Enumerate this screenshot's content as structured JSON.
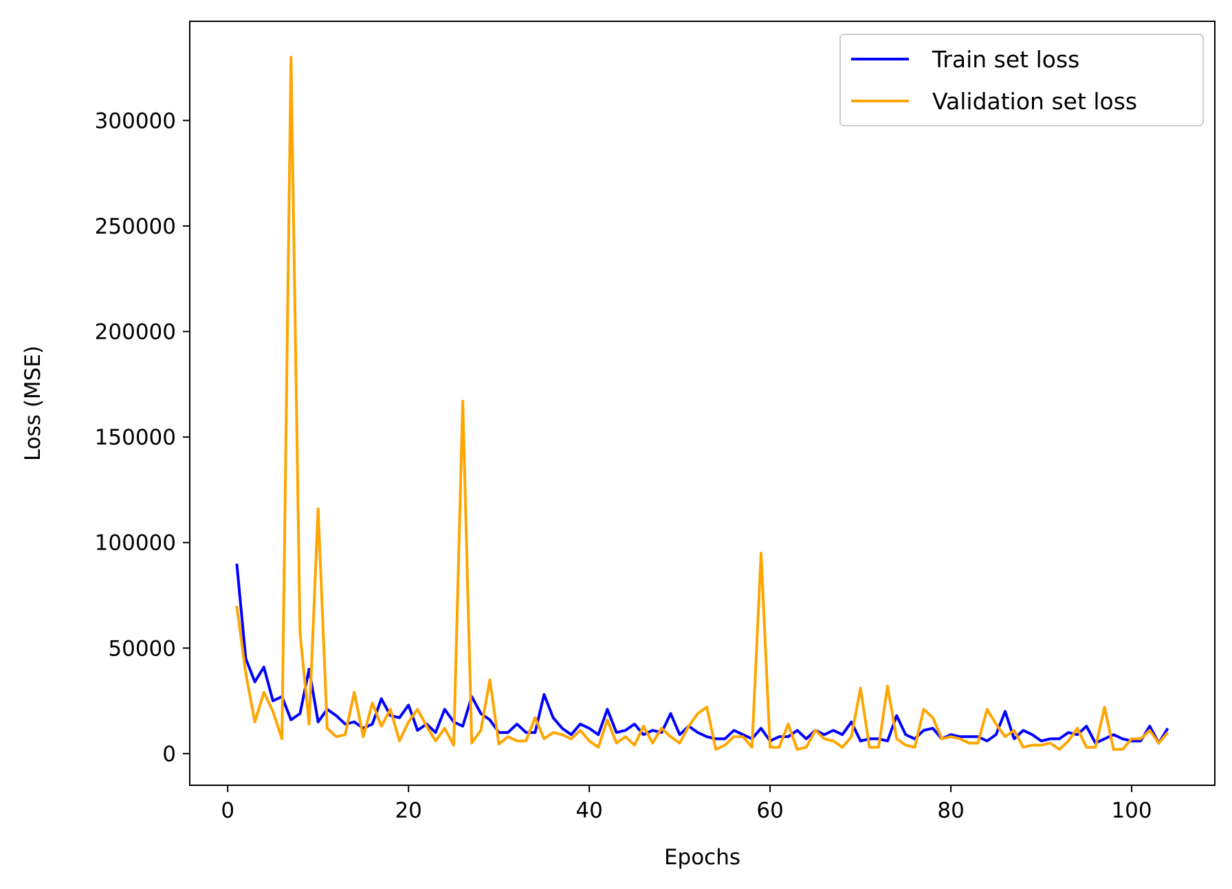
{
  "chart_data": {
    "type": "line",
    "title": "",
    "xlabel": "Epochs",
    "ylabel": "Loss (MSE)",
    "xlim": [
      -4.2,
      109.2
    ],
    "ylim": [
      -15000,
      347000
    ],
    "xticks": [
      0,
      20,
      40,
      60,
      80,
      100
    ],
    "yticks": [
      0,
      50000,
      100000,
      150000,
      200000,
      250000,
      300000
    ],
    "xtick_labels": [
      "0",
      "20",
      "40",
      "60",
      "80",
      "100"
    ],
    "ytick_labels": [
      "0",
      "50000",
      "100000",
      "150000",
      "200000",
      "250000",
      "300000"
    ],
    "grid": false,
    "legend_position": "upper right",
    "x": [
      1,
      2,
      3,
      4,
      5,
      6,
      7,
      8,
      9,
      10,
      11,
      12,
      13,
      14,
      15,
      16,
      17,
      18,
      19,
      20,
      21,
      22,
      23,
      24,
      25,
      26,
      27,
      28,
      29,
      30,
      31,
      32,
      33,
      34,
      35,
      36,
      37,
      38,
      39,
      40,
      41,
      42,
      43,
      44,
      45,
      46,
      47,
      48,
      49,
      50,
      51,
      52,
      53,
      54,
      55,
      56,
      57,
      58,
      59,
      60,
      61,
      62,
      63,
      64,
      65,
      66,
      67,
      68,
      69,
      70,
      71,
      72,
      73,
      74,
      75,
      76,
      77,
      78,
      79,
      80,
      81,
      82,
      83,
      84,
      85,
      86,
      87,
      88,
      89,
      90,
      91,
      92,
      93,
      94,
      95,
      96,
      97,
      98,
      99,
      100,
      101,
      102,
      103,
      104
    ],
    "series": [
      {
        "name": "Train set loss",
        "color": "#0000ff",
        "values": [
          90000,
          45000,
          34000,
          41000,
          25000,
          27000,
          16000,
          19000,
          40000,
          15000,
          21000,
          18000,
          14000,
          15000,
          12000,
          14000,
          26000,
          18000,
          17000,
          23000,
          11000,
          14000,
          10000,
          21000,
          15000,
          13000,
          27000,
          19000,
          16000,
          10000,
          10000,
          14000,
          10000,
          10000,
          28000,
          17000,
          12000,
          9000,
          14000,
          12000,
          9000,
          21000,
          10000,
          11000,
          14000,
          9000,
          11000,
          10000,
          19000,
          9000,
          13000,
          10000,
          8000,
          7000,
          7000,
          11000,
          9000,
          7000,
          12000,
          6000,
          8000,
          8000,
          11000,
          7000,
          11000,
          9000,
          11000,
          9000,
          15000,
          6000,
          7000,
          7000,
          6000,
          18000,
          9000,
          7000,
          11000,
          12000,
          7000,
          9000,
          8000,
          8000,
          8000,
          6000,
          9000,
          20000,
          7000,
          11000,
          9000,
          6000,
          7000,
          7000,
          10000,
          9000,
          13000,
          5000,
          7000,
          9000,
          7000,
          6000,
          6000,
          13000,
          5000,
          12000
        ]
      },
      {
        "name": "Validation set loss",
        "color": "#ffa500",
        "values": [
          70000,
          38000,
          15000,
          29000,
          20000,
          7000,
          330000,
          57000,
          14000,
          116000,
          12000,
          8000,
          9000,
          29000,
          8000,
          24000,
          13000,
          21000,
          6000,
          15000,
          21000,
          13000,
          6000,
          12000,
          4000,
          167000,
          5000,
          11000,
          35000,
          4500,
          8000,
          6000,
          6000,
          17000,
          7000,
          10000,
          9000,
          7000,
          11000,
          6000,
          3000,
          16000,
          5000,
          8000,
          4000,
          13000,
          5000,
          12000,
          8000,
          5000,
          13000,
          19000,
          22000,
          2000,
          4000,
          8000,
          8000,
          3000,
          95000,
          3000,
          3000,
          14000,
          2000,
          3000,
          11000,
          7000,
          6000,
          3000,
          8000,
          31000,
          3000,
          3000,
          32000,
          7000,
          4000,
          3000,
          21000,
          17000,
          7000,
          8000,
          7000,
          5000,
          5000,
          21000,
          14000,
          8000,
          11000,
          3000,
          4000,
          4000,
          5000,
          2000,
          6000,
          12000,
          3000,
          3000,
          22000,
          2000,
          2000,
          7000,
          7000,
          11000,
          5000,
          10000
        ]
      }
    ]
  }
}
